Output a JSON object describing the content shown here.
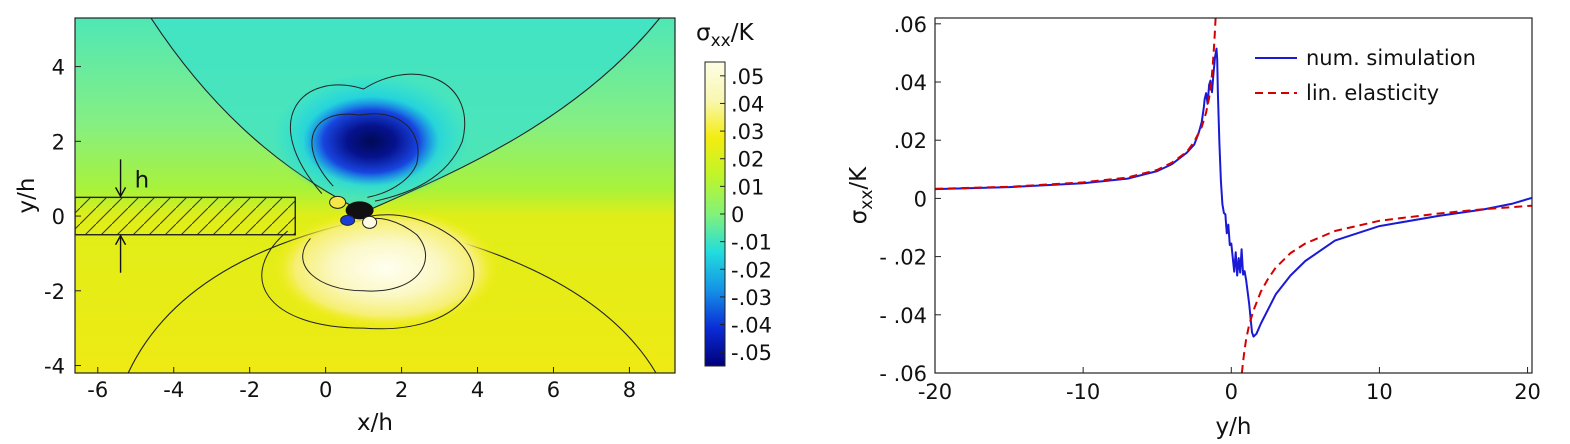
{
  "chart_data": [
    {
      "type": "heatmap",
      "xlabel": "x/h",
      "ylabel": "y/h",
      "xlim": [
        -6.6,
        9.2
      ],
      "ylim": [
        -4.2,
        5.3
      ],
      "xticks": [
        {
          "v": -6,
          "label": "-6"
        },
        {
          "v": -4,
          "label": "-4"
        },
        {
          "v": -2,
          "label": "-2"
        },
        {
          "v": 0,
          "label": "0"
        },
        {
          "v": 2,
          "label": "2"
        },
        {
          "v": 4,
          "label": "4"
        },
        {
          "v": 6,
          "label": "6"
        },
        {
          "v": 8,
          "label": "8"
        }
      ],
      "yticks": [
        {
          "v": -4,
          "label": "-4"
        },
        {
          "v": -2,
          "label": "-2"
        },
        {
          "v": 0,
          "label": "0"
        },
        {
          "v": 2,
          "label": "2"
        },
        {
          "v": 4,
          "label": "4"
        }
      ],
      "strip": {
        "y_min": -0.5,
        "y_max": 0.5,
        "x_end": -0.8
      },
      "strip_label": "h",
      "colorbar": {
        "title_main": "σ",
        "title_sub": "xx",
        "title_tail": "/K",
        "range": [
          -0.055,
          0.055
        ],
        "ticks": [
          {
            "v": 0.05,
            "label": ".05"
          },
          {
            "v": 0.04,
            "label": ".04"
          },
          {
            "v": 0.03,
            "label": ".03"
          },
          {
            "v": 0.02,
            "label": ".02"
          },
          {
            "v": 0.01,
            "label": ".01"
          },
          {
            "v": 0.0,
            "label": "0"
          },
          {
            "v": -0.01,
            "label": "-.01"
          },
          {
            "v": -0.02,
            "label": "-.02"
          },
          {
            "v": -0.03,
            "label": "-.03"
          },
          {
            "v": -0.04,
            "label": "-.04"
          },
          {
            "v": -0.05,
            "label": "-.05"
          }
        ],
        "stops": [
          "#00007a",
          "#0a2cd6",
          "#1592e6",
          "#22dddd",
          "#82f27a",
          "#bff52a",
          "#f4ec10",
          "#f9f7b2",
          "#fdfde4"
        ]
      }
    },
    {
      "type": "line",
      "xlabel": "y/h",
      "ylabel_main": "σ",
      "ylabel_sub": "xx",
      "ylabel_tail": "/K",
      "xlim": [
        -20,
        20.3
      ],
      "ylim": [
        -0.06,
        0.062
      ],
      "grid": false,
      "legend_position": "top-right",
      "xticks": [
        {
          "v": -20,
          "label": "-20"
        },
        {
          "v": -10,
          "label": "-10"
        },
        {
          "v": 0,
          "label": "0"
        },
        {
          "v": 10,
          "label": "10"
        },
        {
          "v": 20,
          "label": "20"
        }
      ],
      "yticks": [
        {
          "v": 0.06,
          "label": ".06"
        },
        {
          "v": 0.04,
          "label": ".04"
        },
        {
          "v": 0.02,
          "label": ".02"
        },
        {
          "v": 0,
          "label": "0"
        },
        {
          "v": -0.02,
          "label": "- .02"
        },
        {
          "v": -0.04,
          "label": "- .04"
        },
        {
          "v": -0.06,
          "label": "- .06"
        }
      ],
      "series": [
        {
          "name": "num. simulation",
          "color": "#1a1ad6",
          "dash": "solid",
          "points": [
            [
              -20,
              0.0032
            ],
            [
              -15,
              0.0039
            ],
            [
              -10,
              0.0052
            ],
            [
              -7,
              0.0068
            ],
            [
              -5,
              0.0094
            ],
            [
              -4,
              0.0118
            ],
            [
              -3,
              0.0157
            ],
            [
              -2.5,
              0.0185
            ],
            [
              -2.2,
              0.0225
            ],
            [
              -2.0,
              0.0262
            ],
            [
              -1.85,
              0.0315
            ],
            [
              -1.8,
              0.034
            ],
            [
              -1.7,
              0.0362
            ],
            [
              -1.6,
              0.0325
            ],
            [
              -1.5,
              0.039
            ],
            [
              -1.4,
              0.0405
            ],
            [
              -1.3,
              0.0365
            ],
            [
              -1.2,
              0.043
            ],
            [
              -1.1,
              0.0485
            ],
            [
              -1.0,
              0.0515
            ],
            [
              -0.95,
              0.0478
            ],
            [
              -0.9,
              0.036
            ],
            [
              -0.8,
              0.019
            ],
            [
              -0.7,
              0.006
            ],
            [
              -0.6,
              -0.002
            ],
            [
              -0.5,
              -0.005
            ],
            [
              -0.4,
              -0.0055
            ],
            [
              -0.35,
              -0.009
            ],
            [
              -0.3,
              -0.012
            ],
            [
              -0.2,
              -0.009
            ],
            [
              -0.1,
              -0.016
            ],
            [
              0.0,
              -0.0155
            ],
            [
              0.1,
              -0.0205
            ],
            [
              0.2,
              -0.0252
            ],
            [
              0.3,
              -0.0185
            ],
            [
              0.4,
              -0.0265
            ],
            [
              0.5,
              -0.0205
            ],
            [
              0.6,
              -0.0255
            ],
            [
              0.7,
              -0.0175
            ],
            [
              0.8,
              -0.0262
            ],
            [
              0.9,
              -0.025
            ],
            [
              1.0,
              -0.028
            ],
            [
              1.2,
              -0.036
            ],
            [
              1.4,
              -0.046
            ],
            [
              1.5,
              -0.0475
            ],
            [
              1.7,
              -0.0465
            ],
            [
              2.0,
              -0.043
            ],
            [
              2.5,
              -0.038
            ],
            [
              3.0,
              -0.033
            ],
            [
              4.0,
              -0.0265
            ],
            [
              5.0,
              -0.0215
            ],
            [
              7.0,
              -0.0145
            ],
            [
              10.0,
              -0.0095
            ],
            [
              14.0,
              -0.006
            ],
            [
              17.0,
              -0.0038
            ],
            [
              19.0,
              -0.0018
            ],
            [
              20.3,
              0.0002
            ]
          ]
        },
        {
          "name": "lin. elasticity",
          "color": "#d40000",
          "dash": "dashed",
          "points": [
            [
              -20,
              0.0033
            ],
            [
              -15,
              0.004
            ],
            [
              -10,
              0.0055
            ],
            [
              -7,
              0.0072
            ],
            [
              -5,
              0.0098
            ],
            [
              -4,
              0.0123
            ],
            [
              -3,
              0.016
            ],
            [
              -2.5,
              0.0195
            ],
            [
              -2,
              0.0245
            ],
            [
              -1.7,
              0.0295
            ],
            [
              -1.5,
              0.0345
            ],
            [
              -1.35,
              0.04
            ],
            [
              -1.25,
              0.046
            ],
            [
              -1.15,
              0.053
            ],
            [
              -1.1,
              0.058
            ],
            [
              -1.06,
              0.062
            ],
            [
              0.72,
              -0.06
            ],
            [
              0.8,
              -0.056
            ],
            [
              0.9,
              -0.052
            ],
            [
              1.0,
              -0.0485
            ],
            [
              1.2,
              -0.0435
            ],
            [
              1.5,
              -0.0385
            ],
            [
              2.0,
              -0.032
            ],
            [
              2.5,
              -0.0275
            ],
            [
              3.0,
              -0.0238
            ],
            [
              4.0,
              -0.0188
            ],
            [
              5.0,
              -0.0155
            ],
            [
              7.0,
              -0.0112
            ],
            [
              10.0,
              -0.0077
            ],
            [
              14.0,
              -0.0052
            ],
            [
              17.0,
              -0.0037
            ],
            [
              20.3,
              -0.0025
            ]
          ]
        }
      ]
    }
  ]
}
